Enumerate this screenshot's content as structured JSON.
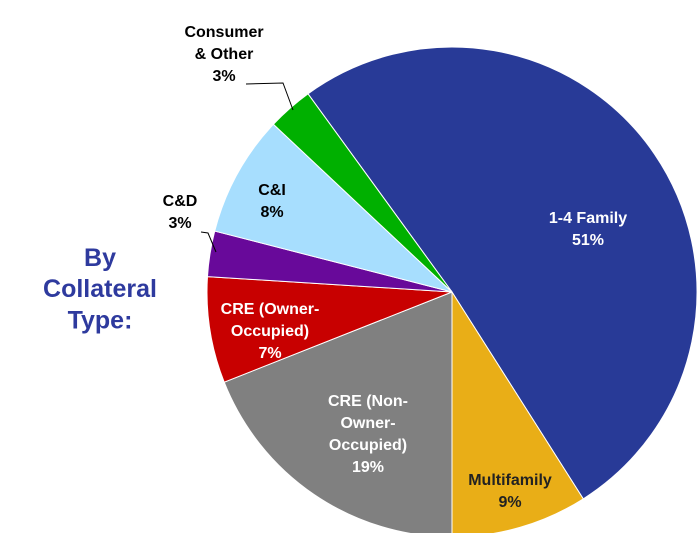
{
  "chart_data": {
    "type": "pie",
    "annotation": "By\nCollateral\nType:",
    "categories": [
      "1-4 Family",
      "Multifamily",
      "CRE (Non-\nOwner-\nOccupied)",
      "CRE (Owner-\nOccupied)",
      "C&D",
      "C&I",
      "Consumer\n& Other"
    ],
    "values": [
      51,
      9,
      19,
      7,
      3,
      8,
      3
    ],
    "value_labels": [
      "51%",
      "9%",
      "19%",
      "7%",
      "3%",
      "8%",
      "3%"
    ],
    "colors": [
      "#283a97",
      "#e9ae17",
      "#808080",
      "#c80000",
      "#68099a",
      "#a7defe",
      "#00b000"
    ]
  }
}
